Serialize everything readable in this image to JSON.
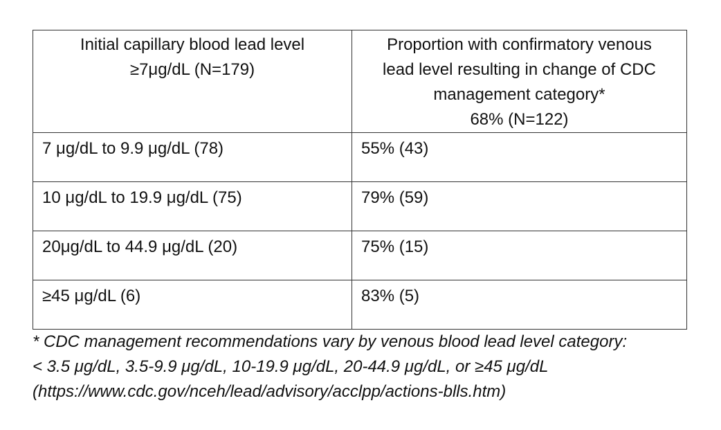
{
  "table": {
    "headers": [
      {
        "lines": [
          "Initial capillary blood lead level",
          "≥7μg/dL (N=179)"
        ]
      },
      {
        "lines": [
          "Proportion with confirmatory venous",
          "lead level resulting in change of CDC",
          "management category*",
          "68% (N=122)"
        ]
      }
    ],
    "rows": [
      {
        "level": "7 μg/dL to 9.9 μg/dL (78)",
        "proportion": "55% (43)"
      },
      {
        "level": "10 μg/dL to 19.9 μg/dL (75)",
        "proportion": "79% (59)"
      },
      {
        "level": "20μg/dL to 44.9 μg/dL (20)",
        "proportion": "75% (15)"
      },
      {
        "level": "≥45 μg/dL (6)",
        "proportion": "83% (5)"
      }
    ]
  },
  "footnote": {
    "lines": [
      "* CDC management recommendations vary by venous blood lead level category:",
      "< 3.5 μg/dL, 3.5-9.9 μg/dL, 10-19.9 μg/dL, 20-44.9 μg/dL, or ≥45 μg/dL",
      "(https://www.cdc.gov/nceh/lead/advisory/acclpp/actions-blls.htm)"
    ]
  }
}
